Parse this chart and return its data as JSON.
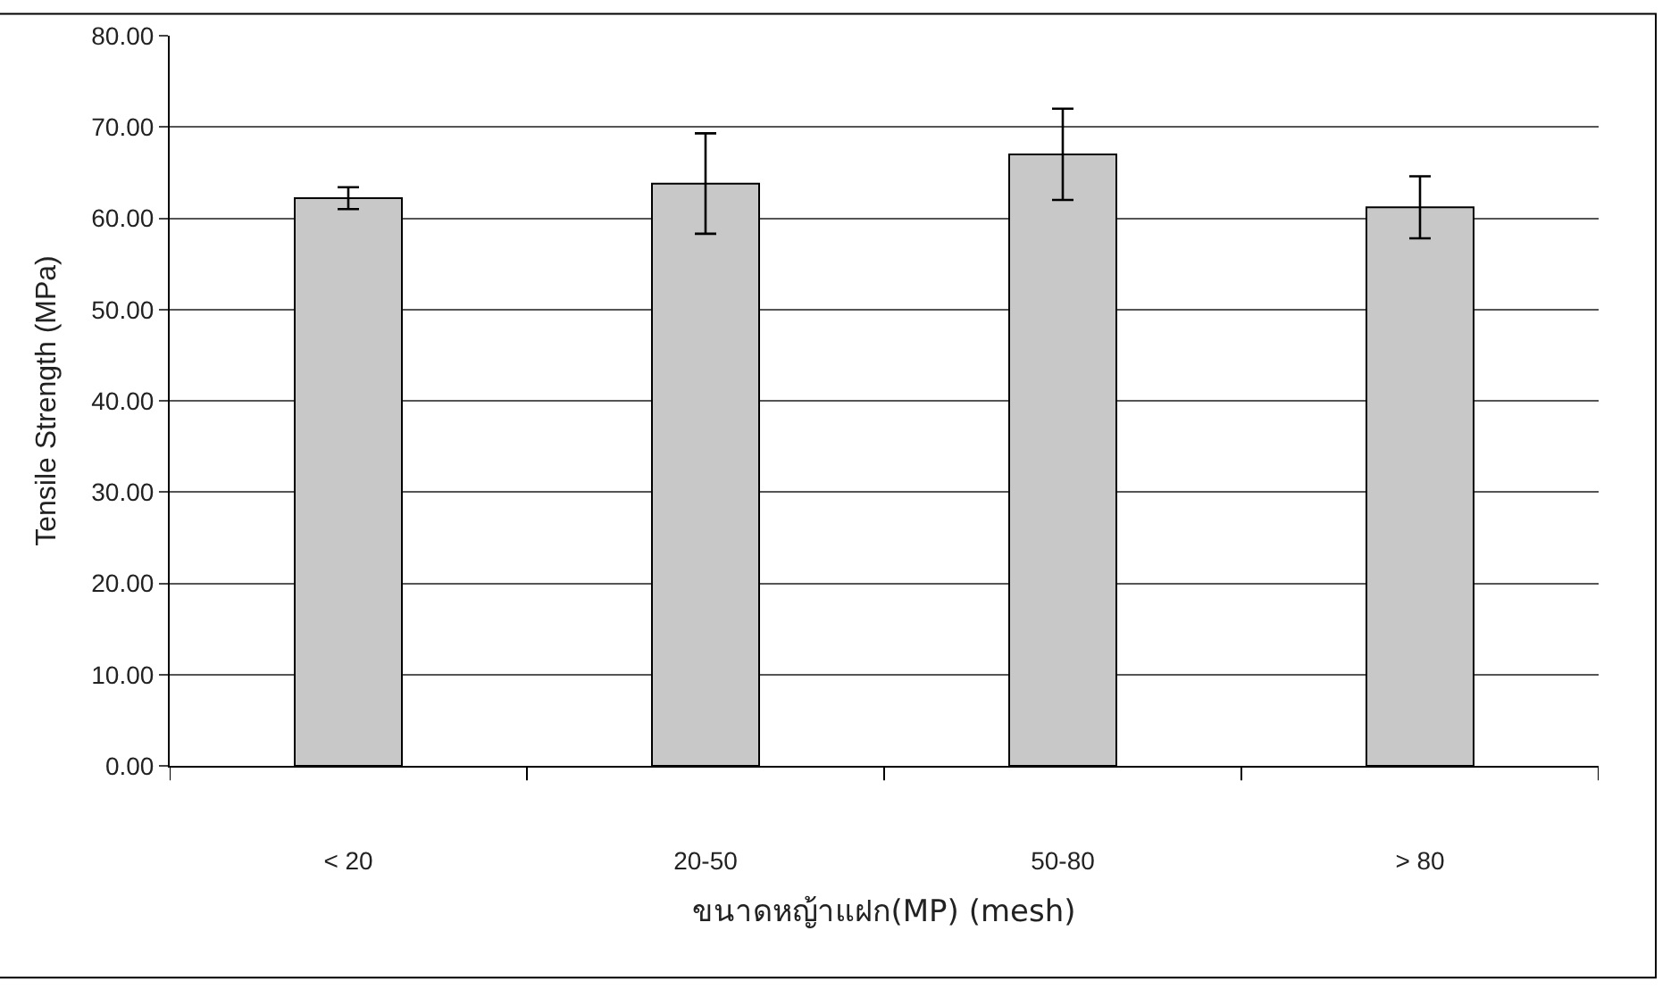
{
  "chart_data": {
    "type": "bar",
    "xlabel": "ขนาดหญ้าแฝก(MP) (mesh)",
    "ylabel": "Tensile Strength (MPa)",
    "categories": [
      "< 20",
      "20-50",
      "50-80",
      "> 80"
    ],
    "values": [
      62.2,
      63.8,
      67.0,
      61.2
    ],
    "errors": [
      1.2,
      5.5,
      5.0,
      3.4
    ],
    "color": "#c8c8c8",
    "ylim": [
      0,
      80
    ],
    "yticks": [
      {
        "value": 0,
        "label": "0.00"
      },
      {
        "value": 10,
        "label": "10.00"
      },
      {
        "value": 20,
        "label": "20.00"
      },
      {
        "value": 30,
        "label": "30.00"
      },
      {
        "value": 40,
        "label": "40.00"
      },
      {
        "value": 50,
        "label": "50.00"
      },
      {
        "value": 60,
        "label": "60.00"
      },
      {
        "value": 70,
        "label": "70.00"
      },
      {
        "value": 80,
        "label": "80.00"
      }
    ],
    "grid": "y"
  }
}
